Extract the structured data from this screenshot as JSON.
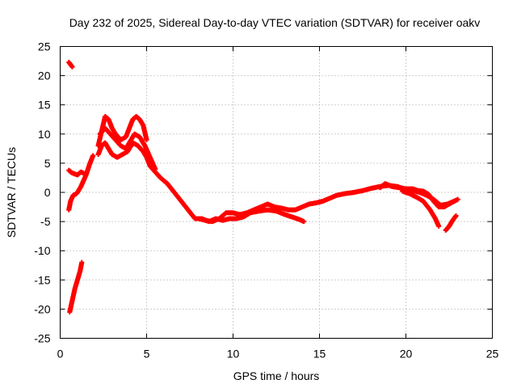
{
  "chart_data": {
    "type": "scatter",
    "title": "Day 232 of 2025, Sidereal Day-to-day VTEC variation (SDTVAR) for receiver oakv",
    "xlabel": "GPS time / hours",
    "ylabel": "SDTVAR / TECUs",
    "xlim": [
      0,
      25
    ],
    "ylim": [
      -25,
      25
    ],
    "xticks": [
      0,
      5,
      10,
      15,
      20,
      25
    ],
    "yticks": [
      -25,
      -20,
      -15,
      -10,
      -5,
      0,
      5,
      10,
      15,
      20,
      25
    ],
    "grid": true,
    "point_color": "#ff0000",
    "series": [
      {
        "name": "seg-a",
        "x": [
          0.5,
          0.6,
          0.7
        ],
        "y": [
          22.3,
          21.9,
          21.5
        ]
      },
      {
        "name": "seg-b",
        "x": [
          0.55,
          0.7,
          0.85,
          1.0,
          1.15,
          1.25
        ],
        "y": [
          -20.5,
          -18.5,
          -16.5,
          -15.0,
          -13.5,
          -12.0
        ]
      },
      {
        "name": "seg-c",
        "x": [
          0.5,
          0.6,
          0.75,
          0.9,
          1.0,
          1.2,
          1.5,
          1.7,
          1.9
        ],
        "y": [
          -3.0,
          -1.5,
          -0.5,
          -0.3,
          0.0,
          1.0,
          3.0,
          4.8,
          6.3
        ]
      },
      {
        "name": "seg-d",
        "x": [
          0.5,
          0.65,
          0.8,
          1.0,
          1.2,
          1.35
        ],
        "y": [
          3.8,
          3.4,
          3.2,
          3.0,
          3.5,
          3.3
        ]
      },
      {
        "name": "seg-e",
        "x": [
          2.2,
          2.4,
          2.6,
          2.8,
          3.0,
          3.3,
          3.6,
          3.9,
          4.2,
          4.5,
          4.8,
          5.0,
          5.2,
          5.5,
          5.8,
          6.2,
          6.6,
          7.0,
          7.4,
          7.8,
          8.2,
          8.6,
          9.0,
          9.4,
          9.8,
          10.2,
          10.6,
          11.0,
          11.5,
          12.0,
          12.5,
          13.0,
          13.4,
          13.8,
          14.1
        ],
        "y": [
          6.5,
          8.0,
          8.5,
          7.5,
          6.5,
          6.0,
          6.5,
          7.0,
          8.5,
          8.0,
          7.0,
          6.0,
          4.5,
          3.5,
          2.5,
          1.5,
          0.0,
          -1.5,
          -3.0,
          -4.5,
          -4.5,
          -5.0,
          -4.5,
          -4.8,
          -4.5,
          -4.5,
          -4.2,
          -3.5,
          -3.2,
          -3.0,
          -3.2,
          -3.8,
          -4.2,
          -4.6,
          -5.0
        ]
      },
      {
        "name": "seg-f",
        "x": [
          2.2,
          2.4,
          2.6,
          2.8,
          3.0,
          3.2,
          3.5,
          3.8,
          4.0,
          4.2,
          4.4,
          4.6,
          4.8,
          5.0
        ],
        "y": [
          8.0,
          10.5,
          13.0,
          12.5,
          11.0,
          10.0,
          9.0,
          9.5,
          11.0,
          12.5,
          13.0,
          12.5,
          11.5,
          9.0
        ]
      },
      {
        "name": "seg-g",
        "x": [
          2.3,
          2.6,
          2.9,
          3.2,
          3.5,
          3.8,
          4.0,
          4.3,
          4.6,
          4.9,
          5.2,
          5.5
        ],
        "y": [
          10.0,
          11.0,
          10.0,
          9.0,
          8.0,
          7.5,
          8.5,
          10.0,
          9.5,
          8.0,
          6.0,
          4.0
        ]
      },
      {
        "name": "seg-h",
        "x": [
          8.0,
          8.4,
          8.8,
          9.2,
          9.6,
          10.0,
          10.4,
          10.8,
          11.2,
          11.6,
          12.0,
          12.4,
          12.8,
          13.2,
          13.6,
          14.0,
          14.4,
          14.8,
          15.2,
          15.6,
          16.0,
          16.5,
          17.0,
          17.5,
          18.0,
          18.5,
          19.0,
          19.5,
          20.0,
          20.4,
          20.8,
          21.2,
          21.6,
          22.0,
          22.4,
          22.8,
          23.0
        ],
        "y": [
          -4.5,
          -4.8,
          -5.0,
          -4.5,
          -3.5,
          -3.5,
          -3.8,
          -3.5,
          -3.0,
          -2.5,
          -2.0,
          -2.5,
          -2.7,
          -3.0,
          -3.0,
          -2.5,
          -2.0,
          -1.8,
          -1.5,
          -1.0,
          -0.5,
          -0.2,
          0.0,
          0.3,
          0.7,
          1.0,
          1.2,
          1.0,
          0.5,
          0.3,
          0.0,
          -0.5,
          -1.2,
          -2.2,
          -2.0,
          -1.5,
          -1.2
        ]
      },
      {
        "name": "seg-i",
        "x": [
          18.5,
          18.8,
          19.2,
          19.6,
          20.0,
          20.4,
          20.7,
          21.0,
          21.3,
          21.6,
          21.9,
          22.2,
          22.5,
          22.8
        ],
        "y": [
          0.8,
          1.5,
          1.0,
          0.8,
          0.6,
          0.6,
          0.3,
          0.2,
          -0.3,
          -1.5,
          -2.5,
          -2.5,
          -2.0,
          -1.5
        ]
      },
      {
        "name": "seg-j",
        "x": [
          19.8,
          20.2,
          20.6,
          21.0,
          21.4,
          21.7,
          21.9
        ],
        "y": [
          0.2,
          -0.2,
          -0.8,
          -1.5,
          -3.0,
          -4.5,
          -5.8
        ]
      },
      {
        "name": "seg-k",
        "x": [
          22.3,
          22.5,
          22.7,
          22.9
        ],
        "y": [
          -6.5,
          -5.8,
          -4.8,
          -4.0
        ]
      }
    ]
  }
}
